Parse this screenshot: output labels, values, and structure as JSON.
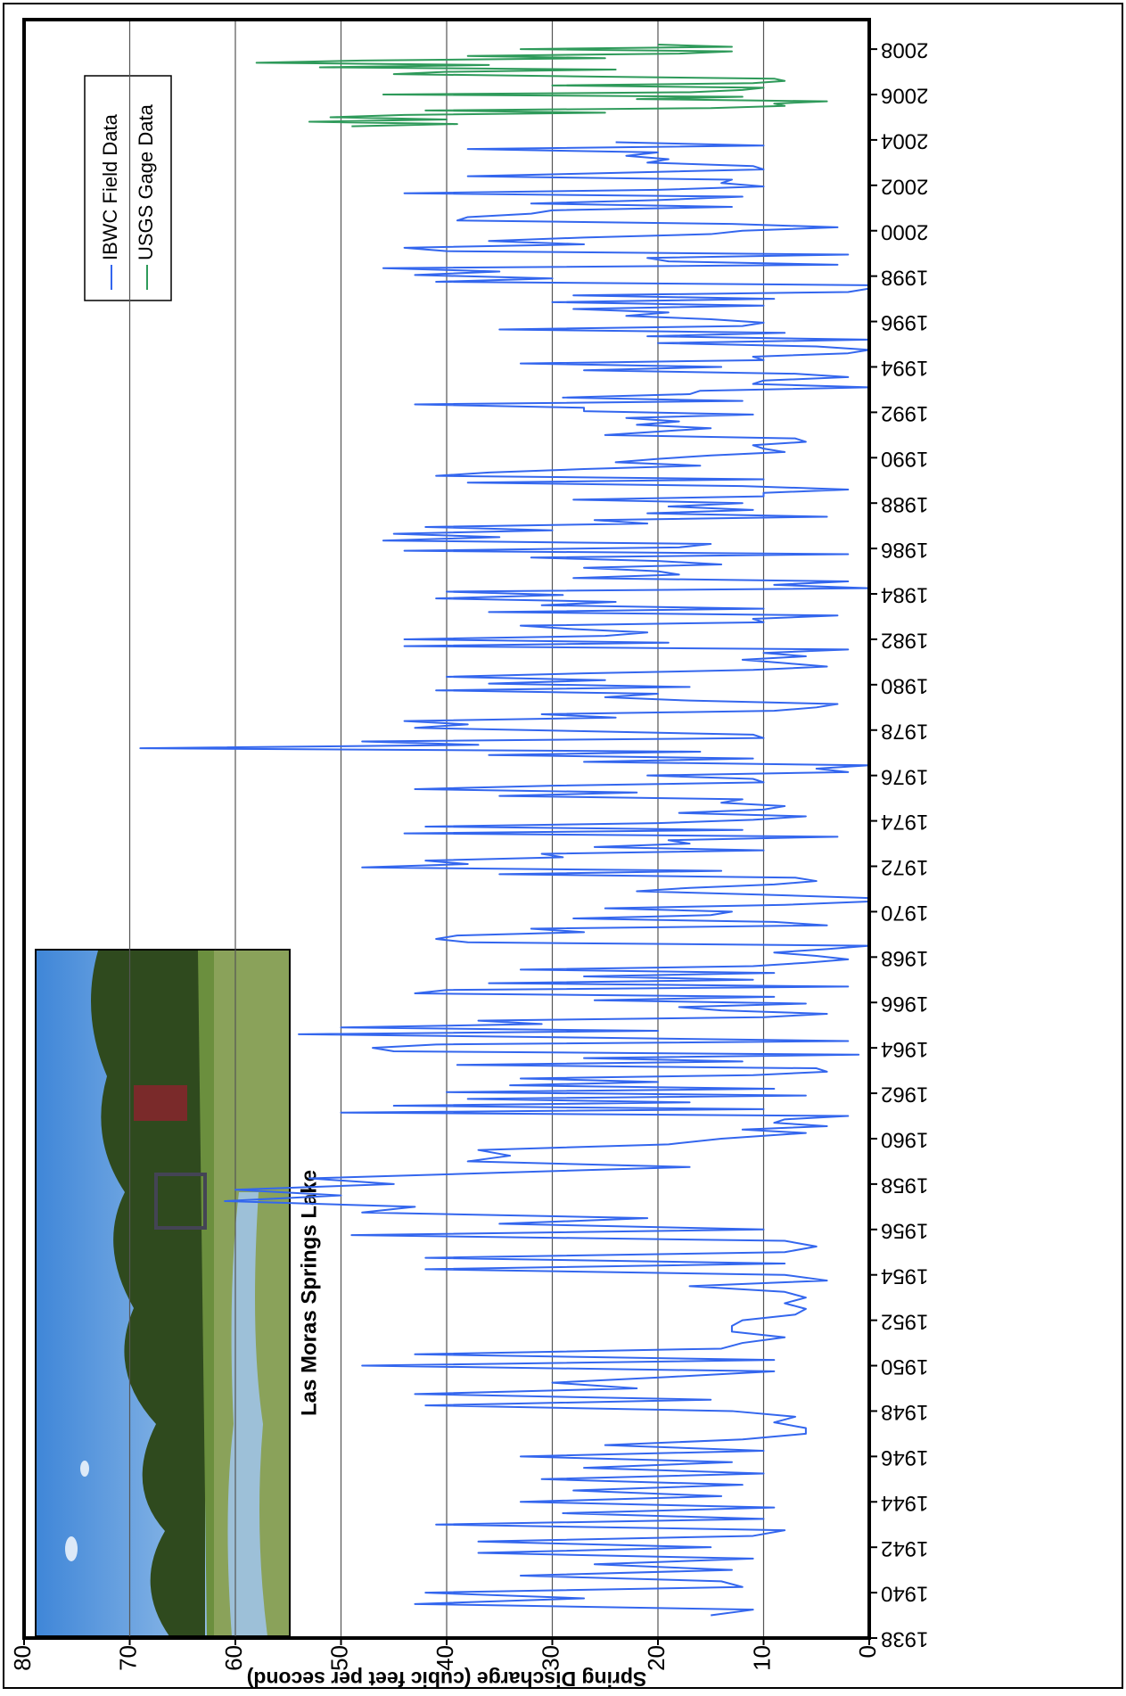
{
  "chart_data": {
    "type": "line",
    "y_label": "Spring Discharge (cubic feet per second)",
    "annotation": "Las Moras Springs Lake",
    "xlim": [
      1938,
      2009.3
    ],
    "xticks": [
      1938,
      1940,
      1942,
      1944,
      1946,
      1948,
      1950,
      1952,
      1954,
      1956,
      1958,
      1960,
      1962,
      1964,
      1966,
      1968,
      1970,
      1972,
      1974,
      1976,
      1978,
      1980,
      1982,
      1984,
      1986,
      1988,
      1990,
      1992,
      1994,
      1996,
      1998,
      2000,
      2002,
      2004,
      2006,
      2008
    ],
    "ylim": [
      0,
      80
    ],
    "yticks": [
      0,
      10,
      20,
      30,
      40,
      50,
      60,
      70,
      80
    ],
    "grid": true,
    "series": [
      {
        "name": "IBWC Field Data",
        "color": "#3366ee",
        "x": [
          1939,
          1939.25,
          1939.5,
          1939.75,
          1940,
          1940.25,
          1940.5,
          1940.75,
          1941,
          1941.25,
          1941.5,
          1941.75,
          1942,
          1942.25,
          1942.5,
          1942.75,
          1943,
          1943.25,
          1943.5,
          1943.75,
          1944,
          1944.25,
          1944.5,
          1944.75,
          1945,
          1945.25,
          1945.5,
          1945.75,
          1946,
          1946.25,
          1946.5,
          1946.75,
          1947,
          1947.25,
          1947.5,
          1947.75,
          1948,
          1948.25,
          1948.5,
          1948.75,
          1949,
          1949.25,
          1949.5,
          1949.75,
          1950,
          1950.25,
          1950.5,
          1950.75,
          1951,
          1951.25,
          1951.5,
          1951.75,
          1952,
          1952.25,
          1952.5,
          1952.75,
          1953,
          1953.25,
          1953.5,
          1953.75,
          1954,
          1954.25,
          1954.5,
          1954.75,
          1955,
          1955.25,
          1955.5,
          1955.75,
          1956,
          1956.25,
          1956.5,
          1956.75,
          1957,
          1957.25,
          1957.5,
          1957.75,
          1958,
          1958.25,
          1958.5,
          1958.75,
          1959,
          1959.25,
          1959.5,
          1959.75,
          1960,
          1960.25,
          1960.4,
          1960.55,
          1960.7,
          1960.85,
          1961,
          1961.15,
          1961.3,
          1961.45,
          1961.6,
          1961.75,
          1961.9,
          1962.05,
          1962.2,
          1962.35,
          1962.5,
          1962.65,
          1962.8,
          1962.95,
          1963.1,
          1963.25,
          1963.4,
          1963.55,
          1963.7,
          1963.85,
          1964,
          1964.15,
          1964.3,
          1964.45,
          1964.6,
          1964.75,
          1964.9,
          1965.05,
          1965.2,
          1965.35,
          1965.5,
          1965.65,
          1965.8,
          1965.95,
          1966.1,
          1966.25,
          1966.4,
          1966.55,
          1966.7,
          1966.85,
          1967,
          1967.15,
          1967.3,
          1967.45,
          1967.6,
          1967.75,
          1967.9,
          1968.05,
          1968.2,
          1968.35,
          1968.5,
          1968.65,
          1968.8,
          1968.95,
          1969.1,
          1969.25,
          1969.4,
          1969.55,
          1969.7,
          1969.85,
          1970,
          1970.15,
          1970.3,
          1970.45,
          1970.6,
          1970.75,
          1970.9,
          1971.05,
          1971.2,
          1971.35,
          1971.5,
          1971.65,
          1971.8,
          1971.95,
          1972.1,
          1972.25,
          1972.4,
          1972.55,
          1972.7,
          1972.85,
          1973,
          1973.15,
          1973.3,
          1973.45,
          1973.6,
          1973.75,
          1973.9,
          1974.05,
          1974.2,
          1974.35,
          1974.5,
          1974.65,
          1974.8,
          1974.95,
          1975.1,
          1975.25,
          1975.4,
          1975.55,
          1975.7,
          1975.85,
          1976,
          1976.15,
          1976.3,
          1976.45,
          1976.6,
          1976.75,
          1976.9,
          1977.05,
          1977.2,
          1977.35,
          1977.5,
          1977.65,
          1977.8,
          1977.95,
          1978.1,
          1978.25,
          1978.4,
          1978.55,
          1978.7,
          1978.85,
          1979,
          1979.15,
          1979.3,
          1979.45,
          1979.6,
          1979.75,
          1979.9,
          1980.05,
          1980.2,
          1980.35,
          1980.5,
          1980.65,
          1980.8,
          1980.95,
          1981.1,
          1981.25,
          1981.4,
          1981.55,
          1981.7,
          1981.85,
          1982,
          1982.15,
          1982.3,
          1982.45,
          1982.6,
          1982.75,
          1982.9,
          1983.05,
          1983.2,
          1983.35,
          1983.5,
          1983.65,
          1983.8,
          1983.95,
          1984.1,
          1984.25,
          1984.4,
          1984.55,
          1984.7,
          1984.85,
          1985,
          1985.15,
          1985.3,
          1985.45,
          1985.6,
          1985.75,
          1985.9,
          1986.05,
          1986.2,
          1986.35,
          1986.5,
          1986.65,
          1986.8,
          1986.95,
          1987.1,
          1987.25,
          1987.4,
          1987.55,
          1987.7,
          1987.85,
          1988,
          1988.15,
          1988.3,
          1988.45,
          1988.6,
          1988.75,
          1988.9,
          1989.05,
          1989.2,
          1989.35,
          1989.5,
          1989.65,
          1989.8,
          1989.95,
          1990.1,
          1990.25,
          1990.4,
          1990.55,
          1990.7,
          1990.85,
          1991,
          1991.15,
          1991.3,
          1991.45,
          1991.6,
          1991.75,
          1991.9,
          1992.05,
          1992.2,
          1992.35,
          1992.5,
          1992.65,
          1992.8,
          1992.95,
          1993.1,
          1993.25,
          1993.4,
          1993.55,
          1993.7,
          1993.85,
          1994,
          1994.15,
          1994.3,
          1994.45,
          1994.6,
          1994.75,
          1994.9,
          1995.05,
          1995.2,
          1995.35,
          1995.5,
          1995.65,
          1995.8,
          1995.95,
          1996.1,
          1996.25,
          1996.4,
          1996.55,
          1996.7,
          1996.85,
          1997,
          1997.15,
          1997.3,
          1997.45,
          1997.6,
          1997.75,
          1997.9,
          1998.05,
          1998.2,
          1998.35,
          1998.5,
          1998.65,
          1998.8,
          1998.95,
          1999.1,
          1999.25,
          1999.4,
          1999.55,
          1999.7,
          1999.85,
          2000,
          2000.15,
          2000.3,
          2000.45,
          2000.6,
          2000.75,
          2000.9,
          2001.05,
          2001.2,
          2001.35,
          2001.5,
          2001.65,
          2001.8,
          2001.95,
          2002.1,
          2002.25,
          2002.4,
          2002.55,
          2002.7,
          2002.85,
          2003,
          2003.15,
          2003.3,
          2003.45,
          2003.6,
          2003.75,
          2003.9
        ],
        "values": [
          15,
          11,
          43,
          27,
          42,
          12,
          14,
          33,
          13,
          26,
          11,
          37,
          15,
          37,
          11,
          8,
          41,
          10,
          29,
          9,
          33,
          14,
          28,
          12,
          31,
          10,
          27,
          13,
          33,
          10,
          25,
          12,
          6,
          6,
          9,
          7,
          13,
          42,
          15,
          43,
          22,
          30,
          19,
          9,
          48,
          9,
          43,
          14,
          12,
          8,
          13,
          13,
          12,
          7,
          6,
          8,
          6,
          8,
          17,
          4,
          8,
          42,
          8,
          42,
          8,
          5,
          8,
          49,
          10,
          35,
          21,
          48,
          43,
          61,
          50,
          60,
          45,
          53,
          35,
          17,
          38,
          34,
          37,
          19,
          14,
          6,
          12,
          4,
          9,
          8,
          2,
          50,
          10,
          45,
          17,
          38,
          6,
          40,
          9,
          34,
          20,
          33,
          11,
          4,
          5,
          39,
          12,
          27,
          1,
          45,
          47,
          41,
          2,
          26,
          54,
          20,
          50,
          31,
          37,
          10,
          4,
          14,
          18,
          6,
          26,
          9,
          43,
          40,
          2,
          36,
          11,
          27,
          9,
          33,
          11,
          6,
          2,
          5,
          9,
          4,
          0,
          38,
          41,
          39,
          27,
          32,
          4,
          9,
          28,
          15,
          13,
          25,
          8,
          0,
          0,
          10,
          22,
          17,
          9,
          5,
          7,
          35,
          14,
          48,
          38,
          42,
          29,
          31,
          10,
          26,
          17,
          19,
          3,
          44,
          12,
          42,
          20,
          11,
          6,
          18,
          10,
          8,
          14,
          12,
          35,
          22,
          43,
          30,
          10,
          11,
          21,
          2,
          5,
          0,
          27,
          11,
          36,
          16,
          69,
          37,
          48,
          10,
          11,
          27,
          43,
          38,
          44,
          24,
          31,
          9,
          5,
          3,
          17,
          25,
          20,
          41,
          17,
          36,
          25,
          40,
          27,
          11,
          4,
          8,
          12,
          6,
          10,
          2,
          44,
          19,
          44,
          25,
          21,
          28,
          33,
          10,
          11,
          3,
          36,
          10,
          31,
          24,
          41,
          29,
          40,
          0,
          9,
          2,
          28,
          18,
          20,
          27,
          14,
          20,
          32,
          2,
          44,
          18,
          15,
          46,
          35,
          45,
          30,
          42,
          21,
          26,
          4,
          21,
          11,
          19,
          12,
          28,
          10,
          10,
          2,
          12,
          38,
          10,
          41,
          36,
          27,
          16,
          24,
          20,
          15,
          8,
          10,
          11,
          6,
          7,
          25,
          20,
          15,
          22,
          18,
          23,
          11,
          27,
          27,
          43,
          12,
          29,
          17,
          16,
          0,
          11,
          10,
          2,
          7,
          27,
          14,
          33,
          10,
          11,
          2,
          0,
          5,
          20,
          0,
          21,
          8,
          35,
          12,
          10,
          15,
          23,
          19,
          28,
          10,
          30,
          9,
          28,
          2,
          0,
          0,
          41,
          30,
          43,
          35,
          46,
          3,
          19,
          21,
          2,
          40,
          44,
          27,
          36,
          27,
          15,
          12,
          3,
          13,
          39,
          38,
          32,
          30,
          13,
          32,
          20,
          12,
          44,
          20,
          10,
          14,
          13,
          38,
          24,
          10,
          11,
          21,
          19,
          23,
          20,
          38,
          10,
          24
        ]
      },
      {
        "name": "USGS Gage Data",
        "color": "#2e9a5a",
        "x": [
          2004.6,
          2004.7,
          2004.8,
          2004.9,
          2005,
          2005.1,
          2005.2,
          2005.3,
          2005.4,
          2005.5,
          2005.6,
          2005.7,
          2005.8,
          2005.9,
          2006,
          2006.1,
          2006.2,
          2006.3,
          2006.4,
          2006.5,
          2006.6,
          2006.7,
          2006.8,
          2006.9,
          2007,
          2007.1,
          2007.2,
          2007.3,
          2007.4,
          2007.5,
          2007.6,
          2007.7,
          2007.8,
          2007.9,
          2008,
          2008.1,
          2008.2
        ],
        "values": [
          49,
          39,
          53,
          40,
          51,
          44,
          25,
          42,
          15,
          8,
          9,
          4,
          22,
          12,
          46,
          17,
          12,
          10,
          30,
          11,
          8,
          9,
          28,
          45,
          40,
          24,
          52,
          36,
          58,
          48,
          25,
          38,
          18,
          13,
          33,
          13,
          20
        ]
      }
    ]
  }
}
